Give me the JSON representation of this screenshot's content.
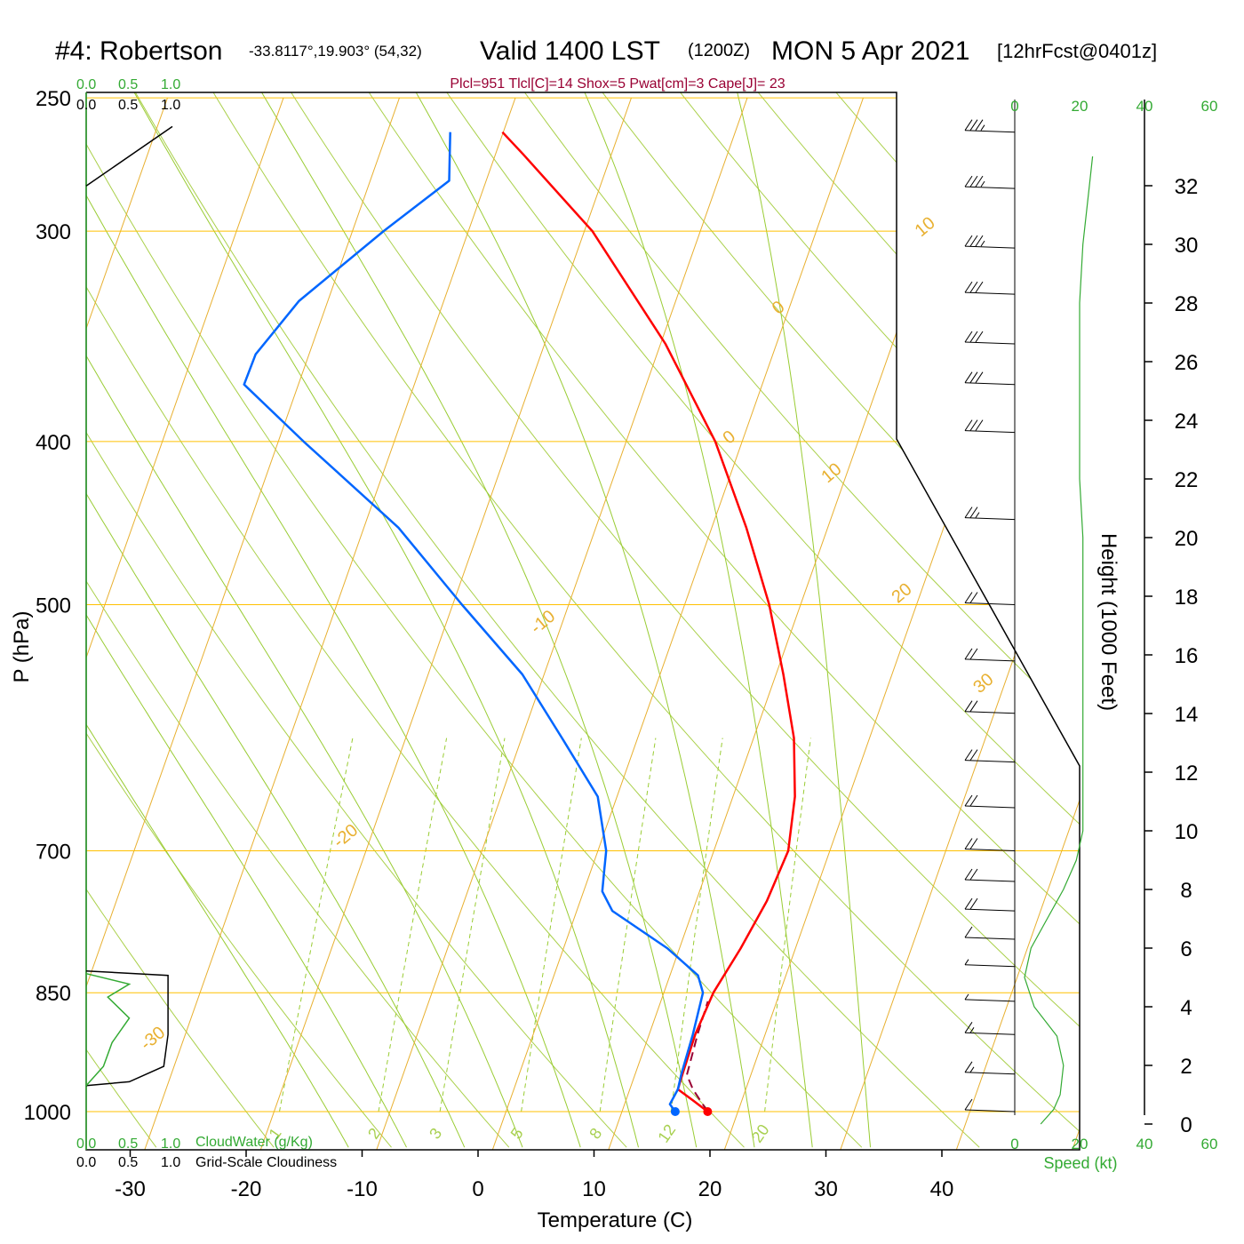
{
  "header": {
    "station": "#4: Robertson",
    "coords": "-33.8117°,19.903° (54,32)",
    "valid": "Valid 1400 LST",
    "zulu": "(1200Z)",
    "date": "MON 5 Apr 2021",
    "forecast": "[12hrFcst@0401z]",
    "indices": "Plcl=951 Tlcl[C]=14 Shox=5 Pwat[cm]=3 Cape[J]= 23"
  },
  "colors": {
    "temperature": "#ff0000",
    "dewpoint": "#0066ff",
    "parcel": "#990033",
    "isobar": "#ffc000",
    "isotherm": "#e8b030",
    "dry_adiabat": "#aad04a",
    "moist_adiabat": "#99cc33",
    "mixing_ratio": "#99cc33",
    "cloud_axis": "#33aa33"
  },
  "legend": {
    "cloudwater_scale": [
      "0.0",
      "0.5",
      "1.0"
    ],
    "cloudiness_scale": [
      "0.0",
      "0.5",
      "1.0"
    ],
    "cloudwater_label": "CloudWater (g/Kg)",
    "cloudiness_label": "Grid-Scale Cloudiness"
  },
  "chart_data": {
    "type": "line",
    "chart_kind": "skew-T log-P sounding",
    "xlabel": "Temperature (C)",
    "ylabel": "P (hPa)",
    "y2label": "Height (1000 Feet)",
    "xlim": [
      -34,
      36
    ],
    "ylim": [
      1030,
      250
    ],
    "y_scale": "log",
    "x_ticks": [
      "-30",
      "-20",
      "-10",
      "0",
      "10",
      "20",
      "30",
      "40"
    ],
    "x_tick_values": [
      -30,
      -20,
      -10,
      0,
      10,
      20,
      30,
      40
    ],
    "pressure_ticks": [
      "250",
      "300",
      "400",
      "500",
      "700",
      "850",
      "1000"
    ],
    "pressure_values": [
      250,
      300,
      400,
      500,
      700,
      850,
      1000
    ],
    "isotherm_labels": [
      {
        "text": "10",
        "t": 10,
        "p": 300
      },
      {
        "text": "0",
        "t": 0,
        "p": 400
      },
      {
        "text": "-10",
        "t": -10,
        "p": 515
      },
      {
        "text": "-20",
        "t": -20,
        "p": 690
      },
      {
        "text": "-30",
        "t": -30,
        "p": 910
      },
      {
        "text": "0",
        "t": 0,
        "p": 335
      },
      {
        "text": "10",
        "t": 10,
        "p": 420
      },
      {
        "text": "20",
        "t": 20,
        "p": 495
      },
      {
        "text": "30",
        "t": 30,
        "p": 560
      }
    ],
    "mixing_ratio_labels": [
      "1",
      "2",
      "3",
      "5",
      "8",
      "12",
      "20"
    ],
    "mixing_ratio_values": [
      1,
      2,
      3,
      5,
      8,
      12,
      20
    ],
    "temperature_profile": [
      {
        "p": 1000,
        "t": 19.8
      },
      {
        "p": 985,
        "t": 18.2
      },
      {
        "p": 970,
        "t": 16.5
      },
      {
        "p": 950,
        "t": 16.4
      },
      {
        "p": 900,
        "t": 16.2
      },
      {
        "p": 850,
        "t": 16.4
      },
      {
        "p": 800,
        "t": 17.3
      },
      {
        "p": 750,
        "t": 18.0
      },
      {
        "p": 700,
        "t": 18.2
      },
      {
        "p": 650,
        "t": 17.0
      },
      {
        "p": 600,
        "t": 15.0
      },
      {
        "p": 550,
        "t": 12.0
      },
      {
        "p": 500,
        "t": 8.5
      },
      {
        "p": 450,
        "t": 4.0
      },
      {
        "p": 400,
        "t": -1.5
      },
      {
        "p": 350,
        "t": -9.0
      },
      {
        "p": 300,
        "t": -19.0
      },
      {
        "p": 270,
        "t": -27.5
      },
      {
        "p": 262,
        "t": -30.0
      }
    ],
    "dewpoint_profile": [
      {
        "p": 1000,
        "t": 17.0
      },
      {
        "p": 990,
        "t": 16.3
      },
      {
        "p": 970,
        "t": 16.5
      },
      {
        "p": 950,
        "t": 16.3
      },
      {
        "p": 900,
        "t": 16.0
      },
      {
        "p": 850,
        "t": 15.5
      },
      {
        "p": 830,
        "t": 14.5
      },
      {
        "p": 800,
        "t": 11.0
      },
      {
        "p": 760,
        "t": 5.0
      },
      {
        "p": 740,
        "t": 3.5
      },
      {
        "p": 720,
        "t": 3.0
      },
      {
        "p": 700,
        "t": 2.5
      },
      {
        "p": 650,
        "t": 0.0
      },
      {
        "p": 600,
        "t": -5.0
      },
      {
        "p": 550,
        "t": -10.5
      },
      {
        "p": 500,
        "t": -18.0
      },
      {
        "p": 450,
        "t": -26.0
      },
      {
        "p": 400,
        "t": -37.0
      },
      {
        "p": 370,
        "t": -44.0
      },
      {
        "p": 355,
        "t": -44.0
      },
      {
        "p": 330,
        "t": -42.0
      },
      {
        "p": 300,
        "t": -37.0
      },
      {
        "p": 280,
        "t": -33.0
      },
      {
        "p": 262,
        "t": -34.5
      }
    ],
    "parcel_profile": [
      {
        "p": 1000,
        "t": 19.8
      },
      {
        "p": 970,
        "t": 17.8
      },
      {
        "p": 951,
        "t": 16.8
      },
      {
        "p": 900,
        "t": 16.4
      },
      {
        "p": 860,
        "t": 16.2
      }
    ],
    "surface_points": {
      "t": 19.8,
      "td": 17.0,
      "p": 1000
    },
    "height_ticks": [
      "0",
      "2",
      "4",
      "6",
      "8",
      "10",
      "12",
      "14",
      "16",
      "18",
      "20",
      "22",
      "24",
      "26",
      "28",
      "30",
      "32"
    ],
    "height_values_kft": [
      0,
      2,
      4,
      6,
      8,
      10,
      12,
      14,
      16,
      18,
      20,
      22,
      24,
      26,
      28,
      30,
      32
    ],
    "speed_ticks": [
      "0",
      "20",
      "40",
      "60"
    ],
    "speed_values": [
      0,
      20,
      40,
      60
    ],
    "speed_label": "Speed (kt)",
    "wind_speed_profile": [
      {
        "h": 0.0,
        "s": 8
      },
      {
        "h": 0.5,
        "s": 12
      },
      {
        "h": 1.0,
        "s": 14
      },
      {
        "h": 2.0,
        "s": 15
      },
      {
        "h": 3.0,
        "s": 13
      },
      {
        "h": 4.0,
        "s": 6
      },
      {
        "h": 5.0,
        "s": 3
      },
      {
        "h": 6.0,
        "s": 5
      },
      {
        "h": 7.0,
        "s": 10
      },
      {
        "h": 8.0,
        "s": 15
      },
      {
        "h": 9.0,
        "s": 19
      },
      {
        "h": 10.0,
        "s": 21
      },
      {
        "h": 12.0,
        "s": 21
      },
      {
        "h": 16.0,
        "s": 21
      },
      {
        "h": 20.0,
        "s": 21
      },
      {
        "h": 22.0,
        "s": 20
      },
      {
        "h": 24.0,
        "s": 20
      },
      {
        "h": 26.0,
        "s": 20
      },
      {
        "h": 28.0,
        "s": 20
      },
      {
        "h": 30.0,
        "s": 21
      },
      {
        "h": 32.0,
        "s": 23
      },
      {
        "h": 33.0,
        "s": 24
      }
    ],
    "wind_barbs": [
      {
        "p": 262,
        "speed": 35
      },
      {
        "p": 283,
        "speed": 35
      },
      {
        "p": 307,
        "speed": 35
      },
      {
        "p": 327,
        "speed": 30
      },
      {
        "p": 350,
        "speed": 30
      },
      {
        "p": 370,
        "speed": 30
      },
      {
        "p": 395,
        "speed": 30
      },
      {
        "p": 445,
        "speed": 25
      },
      {
        "p": 500,
        "speed": 20
      },
      {
        "p": 540,
        "speed": 20
      },
      {
        "p": 580,
        "speed": 20
      },
      {
        "p": 620,
        "speed": 20
      },
      {
        "p": 660,
        "speed": 20
      },
      {
        "p": 700,
        "speed": 20
      },
      {
        "p": 730,
        "speed": 20
      },
      {
        "p": 760,
        "speed": 20
      },
      {
        "p": 790,
        "speed": 10
      },
      {
        "p": 820,
        "speed": 5
      },
      {
        "p": 860,
        "speed": 5
      },
      {
        "p": 900,
        "speed": 15
      },
      {
        "p": 950,
        "speed": 15
      },
      {
        "p": 1000,
        "speed": 10
      }
    ],
    "cloudiness_profile": [
      {
        "p": 825,
        "c": 0.0
      },
      {
        "p": 830,
        "c": 0.95
      },
      {
        "p": 850,
        "c": 0.95
      },
      {
        "p": 900,
        "c": 0.95
      },
      {
        "p": 940,
        "c": 0.9
      },
      {
        "p": 960,
        "c": 0.5
      },
      {
        "p": 965,
        "c": 0.0
      }
    ],
    "cloudwater_profile": [
      {
        "p": 828,
        "c": 0.0
      },
      {
        "p": 840,
        "c": 0.5
      },
      {
        "p": 855,
        "c": 0.25
      },
      {
        "p": 880,
        "c": 0.5
      },
      {
        "p": 910,
        "c": 0.3
      },
      {
        "p": 940,
        "c": 0.2
      },
      {
        "p": 965,
        "c": 0.0
      }
    ],
    "upper_cloudiness_profile": [
      {
        "p": 260,
        "c": 1.0
      },
      {
        "p": 282,
        "c": 0.0
      }
    ]
  }
}
